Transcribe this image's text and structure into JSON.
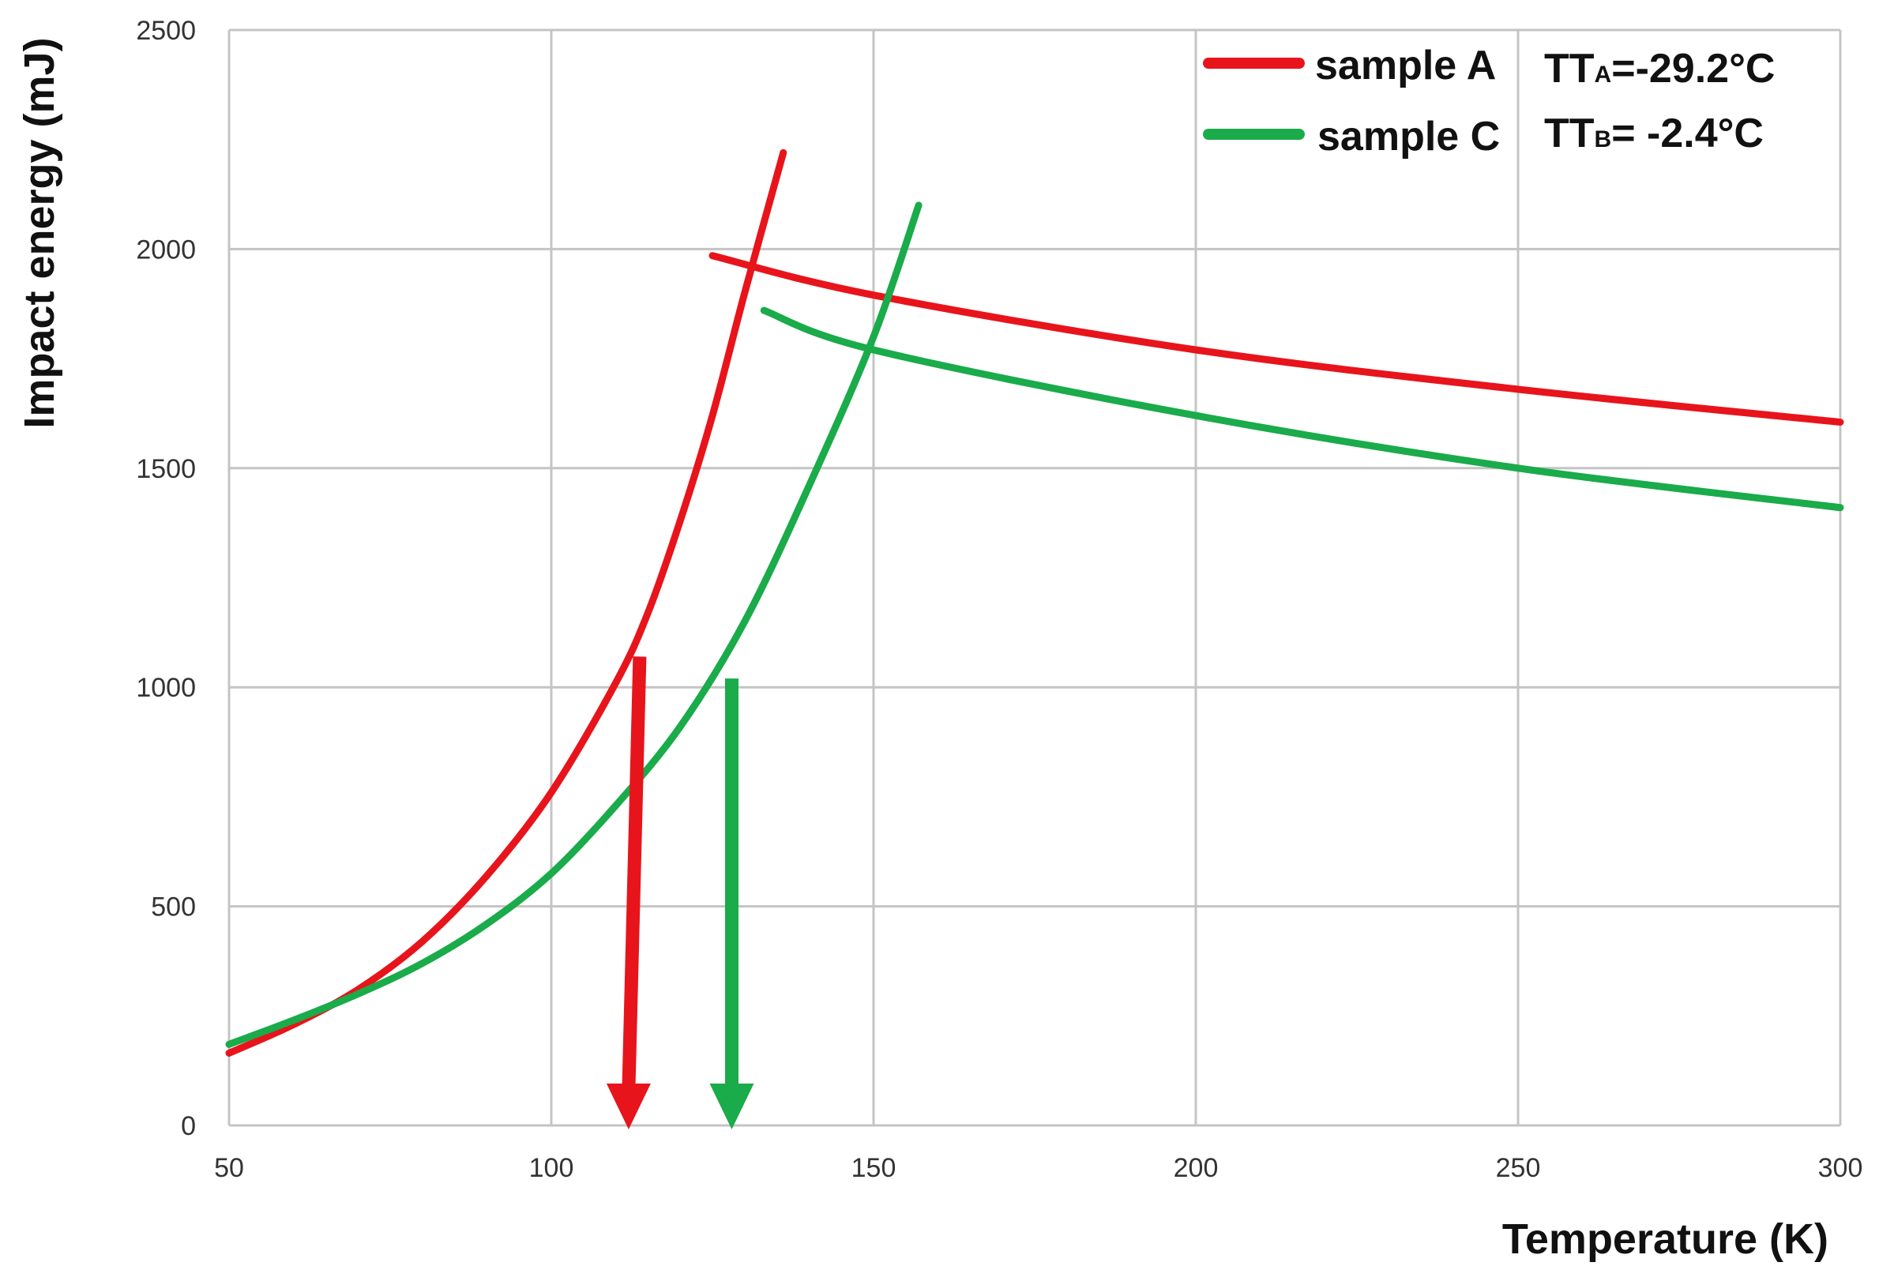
{
  "chart_data": {
    "type": "line",
    "title": "",
    "xlabel": "Temperature (K)",
    "ylabel": "Impact energy (mJ)",
    "xlim": [
      50,
      300
    ],
    "ylim": [
      0,
      2500
    ],
    "x_ticks": [
      "50",
      "100",
      "150",
      "200",
      "250",
      "300"
    ],
    "y_ticks": [
      "0",
      "500",
      "1000",
      "1500",
      "2000",
      "2500"
    ],
    "grid": true,
    "legend_position": "top-right",
    "series": [
      {
        "name": "sample A",
        "color": "#e8141b",
        "annotation_main": "TT",
        "annotation_sub": "A",
        "annotation_value": "=-29.2°C",
        "lower_shelf": [
          [
            50,
            165
          ],
          [
            60,
            230
          ],
          [
            70,
            310
          ],
          [
            80,
            420
          ],
          [
            90,
            570
          ],
          [
            100,
            760
          ],
          [
            110,
            1010
          ],
          [
            115,
            1170
          ],
          [
            120,
            1380
          ],
          [
            125,
            1620
          ],
          [
            130,
            1900
          ],
          [
            136,
            2220
          ]
        ],
        "upper_shelf": [
          [
            125,
            1985
          ],
          [
            150,
            1895
          ],
          [
            200,
            1770
          ],
          [
            250,
            1680
          ],
          [
            300,
            1605
          ]
        ],
        "arrow_x": 112
      },
      {
        "name": "sample C",
        "color": "#1aab4a",
        "annotation_main": "TT",
        "annotation_sub": "B",
        "annotation_value": "= -2.4°C",
        "lower_shelf": [
          [
            50,
            185
          ],
          [
            60,
            240
          ],
          [
            70,
            300
          ],
          [
            80,
            370
          ],
          [
            90,
            460
          ],
          [
            100,
            575
          ],
          [
            110,
            730
          ],
          [
            120,
            910
          ],
          [
            130,
            1150
          ],
          [
            140,
            1460
          ],
          [
            150,
            1800
          ],
          [
            157,
            2100
          ]
        ],
        "upper_shelf": [
          [
            133,
            1860
          ],
          [
            150,
            1770
          ],
          [
            200,
            1620
          ],
          [
            250,
            1500
          ],
          [
            300,
            1410
          ]
        ],
        "arrow_x": 128
      }
    ]
  }
}
